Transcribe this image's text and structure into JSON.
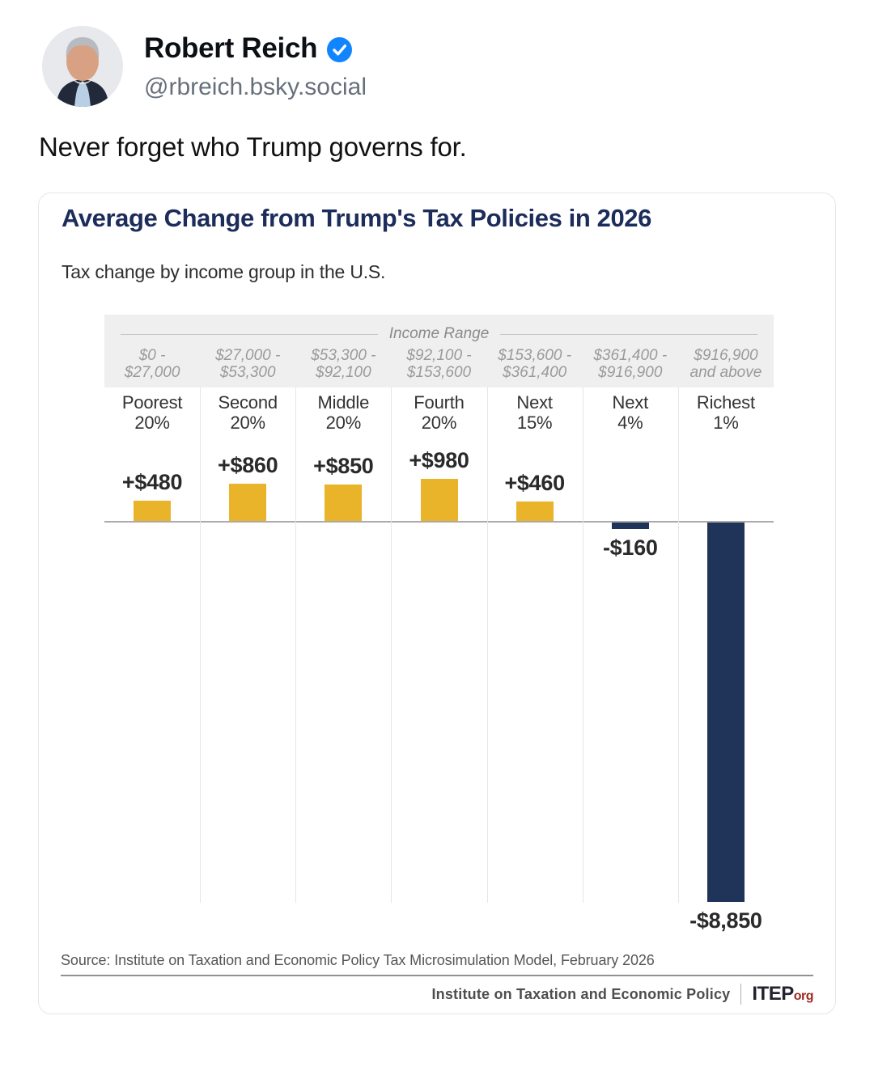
{
  "post": {
    "author_name": "Robert Reich",
    "handle": "@rbreich.bsky.social",
    "body": "Never forget who Trump governs for."
  },
  "chart": {
    "title": "Average Change from Trump's Tax Policies in 2026",
    "subtitle": "Tax change by income group in the U.S.",
    "income_range_label": "Income Range",
    "source": "Source: Institute on Taxation and Economic Policy Tax Microsimulation Model, February 2026",
    "footer": {
      "org_name": "Institute on Taxation and Economic Policy",
      "brand": "ITEP",
      "brand_suffix": "org"
    },
    "colors": {
      "positive_bar": "#E9B32A",
      "negative_bar": "#20345A",
      "title_navy": "#1C2C5B",
      "brand_red": "#9C2A21",
      "verified_blue": "#1185FE"
    }
  },
  "chart_data": {
    "type": "bar",
    "title": "Average Change from Trump's Tax Policies in 2026",
    "subtitle": "Tax change by income group in the U.S.",
    "categories": [
      "Poorest\n20%",
      "Second\n20%",
      "Middle\n20%",
      "Fourth\n20%",
      "Next\n15%",
      "Next\n4%",
      "Richest\n1%"
    ],
    "income_ranges": [
      "$0 -\n$27,000",
      "$27,000 -\n$53,300",
      "$53,300 -\n$92,100",
      "$92,100 -\n$153,600",
      "$153,600 -\n$361,400",
      "$361,400 -\n$916,900",
      "$916,900\nand above"
    ],
    "values": [
      480,
      860,
      850,
      980,
      460,
      -160,
      -8850
    ],
    "value_labels": [
      "+$480",
      "+$860",
      "+$850",
      "+$980",
      "+$460",
      "-$160",
      "-$8,850"
    ],
    "baseline": 0,
    "ylim": [
      -8850,
      980
    ],
    "grid": "vertical column separators only",
    "legend_position": "none",
    "positive_color": "#E9B32A",
    "negative_color": "#20345A"
  }
}
